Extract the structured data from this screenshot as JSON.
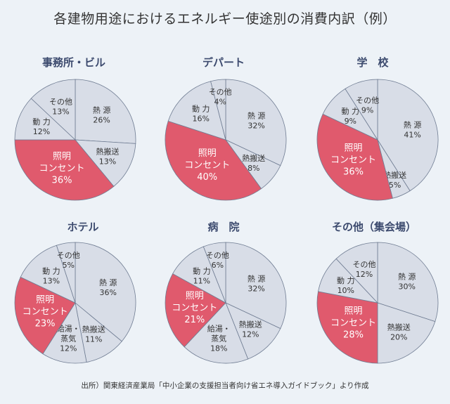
{
  "title": "各建物用途におけるエネルギー使途別の消費内訳（例）",
  "source": "出所）関東経済産業局「中小企業の支援担当者向け省エネ導入ガイドブック」より作成",
  "colors": {
    "slice": "#d8dde7",
    "highlight": "#e05a6d",
    "stroke": "#6f7c92",
    "title": "#3c4a6e"
  },
  "chart_data": [
    {
      "type": "pie",
      "title": "事務所・ビル",
      "slices": [
        {
          "label": [
            "熱 源"
          ],
          "pct": "26%",
          "value": 26
        },
        {
          "label": [
            "熱搬送"
          ],
          "pct": "13%",
          "value": 13
        },
        {
          "label": [
            "照明",
            "コンセント"
          ],
          "pct": "36%",
          "value": 36,
          "highlight": true
        },
        {
          "label": [
            "動 力"
          ],
          "pct": "12%",
          "value": 12
        },
        {
          "label": [
            "その他"
          ],
          "pct": "13%",
          "value": 13
        }
      ]
    },
    {
      "type": "pie",
      "title": "デパート",
      "slices": [
        {
          "label": [
            "熱 源"
          ],
          "pct": "32%",
          "value": 32
        },
        {
          "label": [
            "熱搬送"
          ],
          "pct": "8%",
          "value": 8
        },
        {
          "label": [
            "照明",
            "コンセント"
          ],
          "pct": "40%",
          "value": 40,
          "highlight": true
        },
        {
          "label": [
            "動 力"
          ],
          "pct": "16%",
          "value": 16
        },
        {
          "label": [
            "その他"
          ],
          "pct": "4%",
          "value": 4
        }
      ]
    },
    {
      "type": "pie",
      "title": "学　校",
      "slices": [
        {
          "label": [
            "熱 源"
          ],
          "pct": "41%",
          "value": 41
        },
        {
          "label": [
            "熱搬送"
          ],
          "pct": "5%",
          "value": 5
        },
        {
          "label": [
            "照明",
            "コンセント"
          ],
          "pct": "36%",
          "value": 36,
          "highlight": true
        },
        {
          "label": [
            "動 力"
          ],
          "pct": "9%",
          "value": 9
        },
        {
          "label": [
            "その他"
          ],
          "pct": "9%",
          "value": 9
        }
      ]
    },
    {
      "type": "pie",
      "title": "ホテル",
      "slices": [
        {
          "label": [
            "熱 源"
          ],
          "pct": "36%",
          "value": 36
        },
        {
          "label": [
            "熱搬送"
          ],
          "pct": "11%",
          "value": 11
        },
        {
          "label": [
            "給湯・",
            "蒸気"
          ],
          "pct": "12%",
          "value": 12
        },
        {
          "label": [
            "照明",
            "コンセント"
          ],
          "pct": "23%",
          "value": 23,
          "highlight": true
        },
        {
          "label": [
            "動 力"
          ],
          "pct": "13%",
          "value": 13
        },
        {
          "label": [
            "その他"
          ],
          "pct": "5%",
          "value": 5
        }
      ]
    },
    {
      "type": "pie",
      "title": "病　院",
      "slices": [
        {
          "label": [
            "熱 源"
          ],
          "pct": "32%",
          "value": 32
        },
        {
          "label": [
            "熱搬送"
          ],
          "pct": "12%",
          "value": 12
        },
        {
          "label": [
            "給湯・",
            "蒸気"
          ],
          "pct": "18%",
          "value": 18
        },
        {
          "label": [
            "照明",
            "コンセント"
          ],
          "pct": "21%",
          "value": 21,
          "highlight": true
        },
        {
          "label": [
            "動 力"
          ],
          "pct": "11%",
          "value": 11
        },
        {
          "label": [
            "その他"
          ],
          "pct": "6%",
          "value": 6
        }
      ]
    },
    {
      "type": "pie",
      "title": "その他（集会場）",
      "slices": [
        {
          "label": [
            "熱 源"
          ],
          "pct": "30%",
          "value": 30
        },
        {
          "label": [
            "熱搬送"
          ],
          "pct": "20%",
          "value": 20
        },
        {
          "label": [
            "照明",
            "コンセント"
          ],
          "pct": "28%",
          "value": 28,
          "highlight": true
        },
        {
          "label": [
            "動 力"
          ],
          "pct": "10%",
          "value": 10
        },
        {
          "label": [
            "その他"
          ],
          "pct": "12%",
          "value": 12
        }
      ]
    }
  ]
}
